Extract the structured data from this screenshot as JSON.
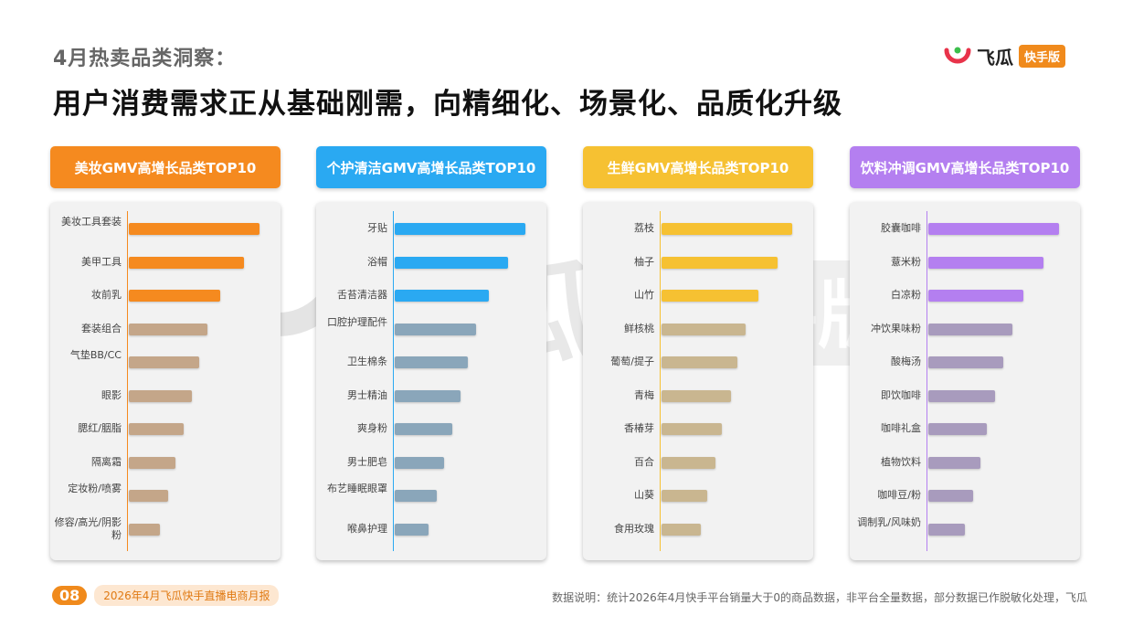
{
  "header": {
    "subtitle": "4月热卖品类洞察：",
    "headline": "用户消费需求正从基础刚需，向精细化、场景化、品质化升级"
  },
  "logo": {
    "text": "飞瓜",
    "badge": "快手版"
  },
  "watermark": {
    "text": "飞瓜",
    "badge": "快手版"
  },
  "colors": {
    "panel1": "#f58a1f",
    "panel2": "#2aa9f2",
    "panel3": "#f6c132",
    "panel4": "#b47ff0",
    "panel1_muted": "#c4a689",
    "panel2_muted": "#8aa6ba",
    "panel3_muted": "#c9b690",
    "panel4_muted": "#a89bbd"
  },
  "chart_data": [
    {
      "type": "bar",
      "title": "美妆GMV高增长品类TOP10",
      "categories": [
        "美妆工具套装",
        "美甲工具",
        "妆前乳",
        "套装组合",
        "气垫BB/CC",
        "眼影",
        "腮红/胭脂",
        "隔离霜",
        "定妆粉/喷雾",
        "修容/高光/阴影粉"
      ],
      "values": [
        100,
        88,
        70,
        60,
        54,
        48,
        42,
        36,
        30,
        24
      ]
    },
    {
      "type": "bar",
      "title": "个护清洁GMV高增长品类TOP10",
      "categories": [
        "牙贴",
        "浴帽",
        "舌苔清洁器",
        "口腔护理配件",
        "卫生棉条",
        "男士精油",
        "爽身粉",
        "男士肥皂",
        "布艺睡眠眼罩",
        "喉鼻护理"
      ],
      "values": [
        100,
        87,
        72,
        62,
        56,
        50,
        44,
        38,
        32,
        26
      ]
    },
    {
      "type": "bar",
      "title": "生鲜GMV高增长品类TOP10",
      "categories": [
        "荔枝",
        "柚子",
        "山竹",
        "鲜核桃",
        "葡萄/提子",
        "青梅",
        "香椿芽",
        "百合",
        "山葵",
        "食用玫瑰"
      ],
      "values": [
        100,
        89,
        74,
        64,
        58,
        53,
        46,
        41,
        35,
        30
      ]
    },
    {
      "type": "bar",
      "title": "饮料冲调GMV高增长品类TOP10",
      "categories": [
        "胶囊咖啡",
        "薏米粉",
        "白凉粉",
        "冲饮果味粉",
        "酸梅汤",
        "即饮咖啡",
        "咖啡礼盒",
        "植物饮料",
        "咖啡豆/粉",
        "调制乳/风味奶"
      ],
      "values": [
        100,
        88,
        73,
        64,
        57,
        51,
        45,
        40,
        34,
        28
      ]
    }
  ],
  "footer": {
    "page": "08",
    "report": "2026年4月飞瓜快手直播电商月报",
    "note": "数据说明：统计2026年4月快手平台销量大于0的商品数据，非平台全量数据，部分数据已作脱敏化处理，飞瓜"
  }
}
